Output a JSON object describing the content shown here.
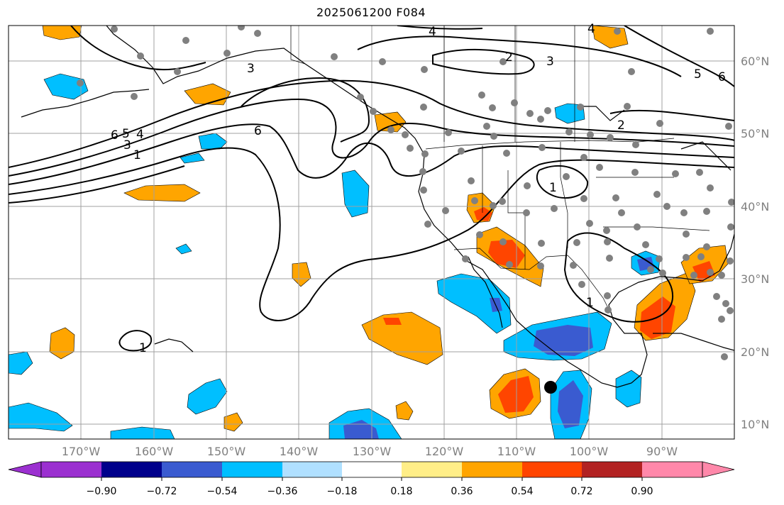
{
  "title": "2025061200 F084",
  "map": {
    "lon_range": [
      -180,
      -80
    ],
    "lat_range": [
      8,
      65
    ],
    "lat_labels": [
      "60°N",
      "50°N",
      "40°N",
      "30°N",
      "20°N",
      "10°N"
    ],
    "lon_labels": [
      "170°W",
      "160°W",
      "150°W",
      "140°W",
      "130°W",
      "120°W",
      "110°W",
      "100°W",
      "90°W"
    ],
    "gridline_color": "#a0a0a0",
    "contour_color": "#000000",
    "contour_labels": [
      "4",
      "4",
      "2",
      "3",
      "5",
      "6",
      "3",
      "6",
      "6",
      "5",
      "4",
      "3",
      "1",
      "2",
      "1",
      "1",
      "1"
    ],
    "marker": "black-dot"
  },
  "colorbar": {
    "ticks": [
      "−0.90",
      "−0.72",
      "−0.54",
      "−0.36",
      "−0.18",
      "0.18",
      "0.36",
      "0.54",
      "0.72",
      "0.90"
    ],
    "colors": [
      "#9b30d0",
      "#00008b",
      "#3a5bd0",
      "#00bfff",
      "#b0e0ff",
      "#ffffff",
      "#ffee88",
      "#ffa500",
      "#ff4500",
      "#b22222",
      "#ff88aa"
    ]
  }
}
